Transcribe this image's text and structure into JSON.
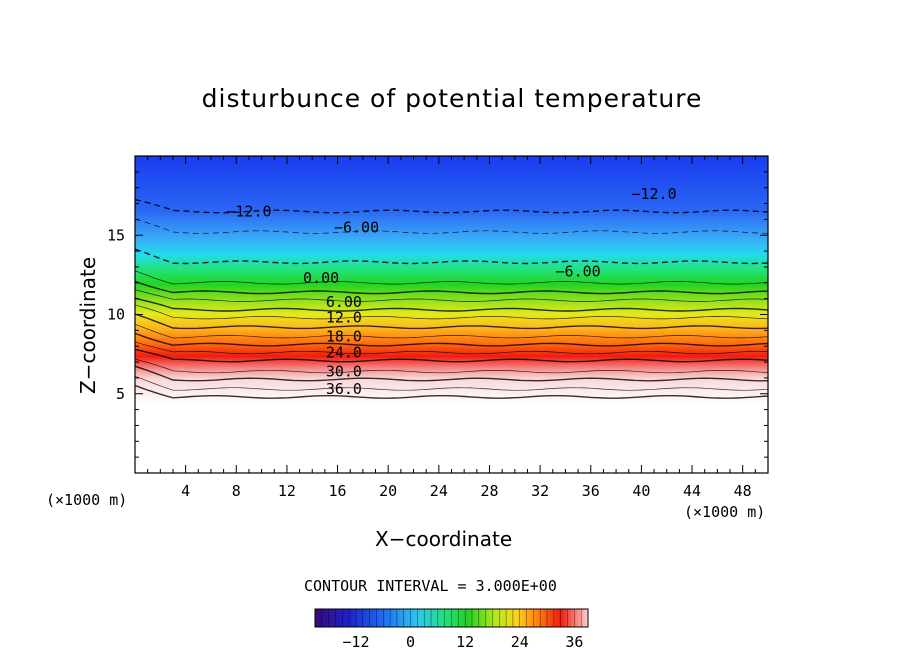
{
  "chart_data": {
    "type": "heatmap",
    "title": "disturbunce of potential temperature",
    "xlabel": "X−coordinate",
    "ylabel": "Z−coordinate",
    "x_unit_left": "(×1000 m)",
    "x_unit_right": "(×1000 m)",
    "xlim": [
      0,
      50
    ],
    "ylim": [
      0,
      20
    ],
    "x_ticks": [
      4,
      8,
      12,
      16,
      20,
      24,
      28,
      32,
      36,
      40,
      44,
      48
    ],
    "y_ticks": [
      5,
      10,
      15
    ],
    "contour_interval_text": "CONTOUR INTERVAL = 3.000E+00",
    "contour_labels": [
      {
        "text": "−12.0",
        "x": 9,
        "z": 16.5
      },
      {
        "text": "−6.00",
        "x": 17.5,
        "z": 15.5
      },
      {
        "text": "−12.0",
        "x": 41,
        "z": 17.6
      },
      {
        "text": "−6.00",
        "x": 35,
        "z": 12.7
      },
      {
        "text": "0.00",
        "x": 14.7,
        "z": 12.3
      },
      {
        "text": "6.00",
        "x": 16.5,
        "z": 10.8
      },
      {
        "text": "12.0",
        "x": 16.5,
        "z": 9.8
      },
      {
        "text": "18.0",
        "x": 16.5,
        "z": 8.6
      },
      {
        "text": "24.0",
        "x": 16.5,
        "z": 7.6
      },
      {
        "text": "30.0",
        "x": 16.5,
        "z": 6.4
      },
      {
        "text": "36.0",
        "x": 16.5,
        "z": 5.3
      }
    ],
    "colorbar": {
      "range": [
        -21,
        39
      ],
      "ticks": [
        -12,
        0,
        12,
        24,
        36
      ]
    },
    "grid": false
  }
}
